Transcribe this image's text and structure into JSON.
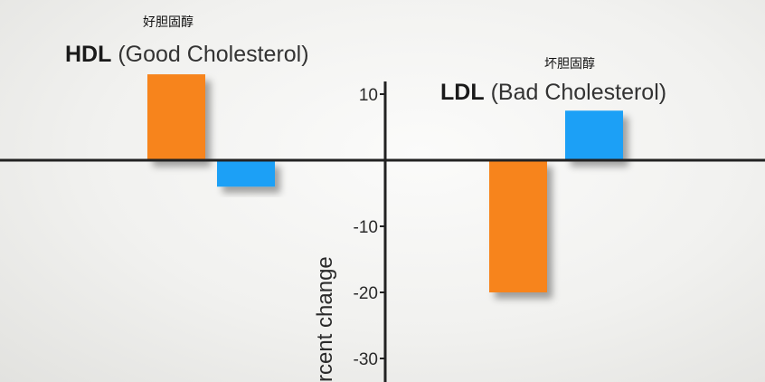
{
  "captions": {
    "hdl_cn": "好胆固醇",
    "ldl_cn": "坏胆固醇"
  },
  "chart_data": {
    "type": "bar",
    "ylabel": "rcent change",
    "yticks": [
      10,
      -10,
      -20,
      -30
    ],
    "ylim": [
      -33,
      13
    ],
    "panels": [
      {
        "abbr": "HDL",
        "name": "(Good Cholesterol)",
        "values": [
          13,
          -4
        ],
        "colors": [
          "#f7841b",
          "#1aa0f6"
        ]
      },
      {
        "abbr": "LDL",
        "name": "(Bad Cholesterol)",
        "values": [
          -20,
          7.5
        ],
        "colors": [
          "#f7841b",
          "#1aa0f6"
        ]
      }
    ]
  }
}
